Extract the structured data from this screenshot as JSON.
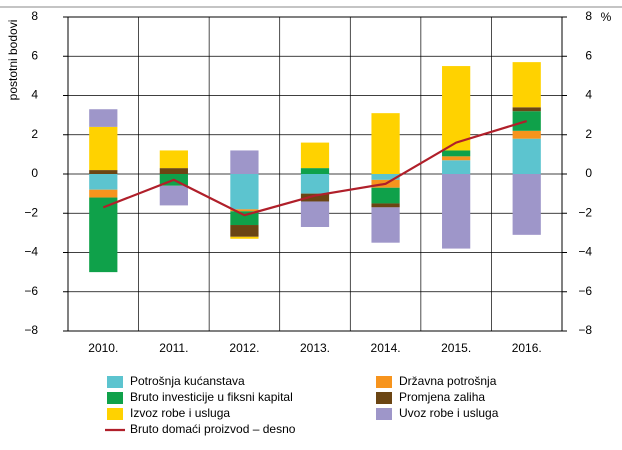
{
  "chart_data": {
    "type": "bar",
    "y_label": "postotni bodovi",
    "y2_label": "%",
    "categories": [
      "2010.",
      "2011.",
      "2012.",
      "2013.",
      "2014.",
      "2015.",
      "2016."
    ],
    "series": [
      {
        "name": "Potrošnja kućanstava",
        "color": "#5cc4cf",
        "values": [
          -0.8,
          0,
          -1.8,
          -1.0,
          -0.3,
          0.7,
          1.8
        ]
      },
      {
        "name": "Državna potrošnja",
        "color": "#f7941d",
        "values": [
          -0.4,
          0,
          -0.1,
          0,
          -0.4,
          0.2,
          0.4
        ]
      },
      {
        "name": "Bruto investicije u fiksni kapital",
        "color": "#0fa14a",
        "values": [
          -3.8,
          -0.6,
          -0.7,
          0.3,
          -0.8,
          0.3,
          1.0
        ]
      },
      {
        "name": "Promjena zaliha",
        "color": "#6b4513",
        "values": [
          0.2,
          0.3,
          -0.6,
          -0.4,
          -0.2,
          0,
          0.2
        ]
      },
      {
        "name": "Izvoz robe i usluga",
        "color": "#ffd200",
        "values": [
          2.2,
          0.9,
          -0.1,
          1.3,
          3.1,
          4.3,
          2.3
        ]
      },
      {
        "name": "Uvoz robe i usluga",
        "color": "#9e96c9",
        "values": [
          0.9,
          -1.0,
          1.2,
          -1.3,
          -1.8,
          -3.8,
          -3.1
        ]
      },
      {
        "name": "Bruto domaći proizvod – desno",
        "color": "#b01f2a",
        "type": "line",
        "axis": "y2",
        "values": [
          -1.7,
          -0.3,
          -2.1,
          -1.1,
          -0.5,
          1.6,
          2.7
        ]
      }
    ],
    "ylim": [
      -8,
      8
    ],
    "yticks": [
      {
        "value": -8,
        "label": "−8"
      },
      {
        "value": -6,
        "label": "−6"
      },
      {
        "value": -4,
        "label": "−4"
      },
      {
        "value": -2,
        "label": "−2"
      },
      0,
      2,
      4,
      6,
      8
    ],
    "y2lim": [
      -8,
      8
    ],
    "y2ticks": [
      {
        "value": -8,
        "label": "−8"
      },
      {
        "value": -6,
        "label": "−6"
      },
      {
        "value": -4,
        "label": "−4"
      },
      {
        "value": -2,
        "label": "−2"
      },
      0,
      2,
      4,
      6,
      8
    ],
    "grid": true
  }
}
